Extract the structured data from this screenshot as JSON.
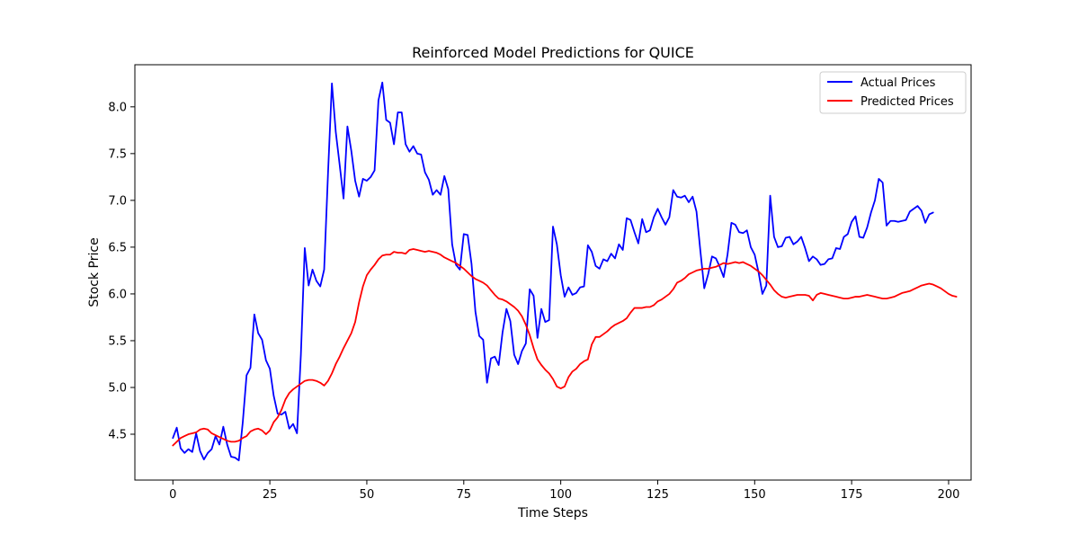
{
  "chart_data": {
    "type": "line",
    "title": "Reinforced Model Predictions for QUICE",
    "xlabel": "Time Steps",
    "ylabel": "Stock Price",
    "xlim": [
      -9.8,
      205.8
    ],
    "ylim": [
      4.01,
      8.45
    ],
    "xticks": [
      0,
      25,
      50,
      75,
      100,
      125,
      150,
      175,
      200
    ],
    "yticks": [
      4.5,
      5.0,
      5.5,
      6.0,
      6.5,
      7.0,
      7.5,
      8.0
    ],
    "grid": false,
    "legend_position": "top-right",
    "series": [
      {
        "name": "Actual Prices",
        "color": "#0000ff",
        "values": [
          4.46,
          4.57,
          4.35,
          4.3,
          4.34,
          4.31,
          4.51,
          4.32,
          4.23,
          4.3,
          4.34,
          4.48,
          4.39,
          4.58,
          4.39,
          4.26,
          4.25,
          4.22,
          4.62,
          5.13,
          5.21,
          5.78,
          5.58,
          5.51,
          5.29,
          5.2,
          4.91,
          4.72,
          4.71,
          4.74,
          4.56,
          4.61,
          4.51,
          5.35,
          6.49,
          6.09,
          6.26,
          6.14,
          6.08,
          6.26,
          7.29,
          8.25,
          7.73,
          7.38,
          7.02,
          7.79,
          7.53,
          7.21,
          7.04,
          7.23,
          7.21,
          7.25,
          7.32,
          8.07,
          8.26,
          7.86,
          7.83,
          7.6,
          7.94,
          7.94,
          7.6,
          7.52,
          7.58,
          7.5,
          7.49,
          7.3,
          7.22,
          7.06,
          7.11,
          7.06,
          7.26,
          7.12,
          6.53,
          6.31,
          6.26,
          6.64,
          6.63,
          6.32,
          5.81,
          5.55,
          5.51,
          5.05,
          5.31,
          5.33,
          5.24,
          5.59,
          5.84,
          5.71,
          5.35,
          5.25,
          5.39,
          5.47,
          6.05,
          5.98,
          5.53,
          5.84,
          5.7,
          5.72,
          6.72,
          6.53,
          6.2,
          5.97,
          6.07,
          5.99,
          6.01,
          6.07,
          6.08,
          6.52,
          6.45,
          6.3,
          6.27,
          6.37,
          6.35,
          6.43,
          6.38,
          6.53,
          6.47,
          6.81,
          6.79,
          6.66,
          6.54,
          6.8,
          6.66,
          6.68,
          6.82,
          6.91,
          6.82,
          6.74,
          6.82,
          7.11,
          7.04,
          7.03,
          7.05,
          6.98,
          7.04,
          6.88,
          6.46,
          6.06,
          6.21,
          6.4,
          6.38,
          6.29,
          6.18,
          6.42,
          6.76,
          6.74,
          6.66,
          6.65,
          6.68,
          6.5,
          6.42,
          6.23,
          6.0,
          6.09,
          7.05,
          6.61,
          6.5,
          6.51,
          6.6,
          6.61,
          6.53,
          6.56,
          6.61,
          6.49,
          6.35,
          6.4,
          6.37,
          6.31,
          6.32,
          6.37,
          6.38,
          6.49,
          6.48,
          6.61,
          6.64,
          6.77,
          6.83,
          6.61,
          6.6,
          6.71,
          6.87,
          7.0,
          7.23,
          7.19,
          6.73,
          6.78,
          6.78,
          6.77,
          6.78,
          6.79,
          6.88,
          6.91,
          6.94,
          6.89,
          6.76,
          6.85,
          6.87
        ]
      },
      {
        "name": "Predicted Prices",
        "color": "#ff0000",
        "values": [
          4.38,
          4.42,
          4.46,
          4.48,
          4.5,
          4.51,
          4.52,
          4.55,
          4.56,
          4.55,
          4.51,
          4.49,
          4.47,
          4.45,
          4.43,
          4.42,
          4.42,
          4.43,
          4.46,
          4.48,
          4.53,
          4.55,
          4.56,
          4.54,
          4.5,
          4.54,
          4.63,
          4.68,
          4.76,
          4.87,
          4.94,
          4.98,
          5.01,
          5.04,
          5.07,
          5.08,
          5.08,
          5.07,
          5.05,
          5.02,
          5.07,
          5.15,
          5.25,
          5.33,
          5.42,
          5.5,
          5.58,
          5.7,
          5.91,
          6.08,
          6.2,
          6.26,
          6.31,
          6.37,
          6.41,
          6.42,
          6.42,
          6.45,
          6.44,
          6.44,
          6.43,
          6.47,
          6.48,
          6.47,
          6.46,
          6.45,
          6.46,
          6.45,
          6.44,
          6.42,
          6.39,
          6.37,
          6.35,
          6.33,
          6.3,
          6.27,
          6.23,
          6.19,
          6.16,
          6.14,
          6.12,
          6.09,
          6.04,
          5.99,
          5.95,
          5.94,
          5.92,
          5.89,
          5.86,
          5.82,
          5.76,
          5.67,
          5.56,
          5.42,
          5.3,
          5.24,
          5.19,
          5.15,
          5.09,
          5.01,
          4.99,
          5.01,
          5.11,
          5.17,
          5.2,
          5.25,
          5.28,
          5.3,
          5.46,
          5.54,
          5.54,
          5.57,
          5.6,
          5.64,
          5.67,
          5.69,
          5.71,
          5.74,
          5.8,
          5.85,
          5.85,
          5.85,
          5.86,
          5.86,
          5.88,
          5.92,
          5.94,
          5.97,
          6.0,
          6.05,
          6.12,
          6.14,
          6.17,
          6.21,
          6.23,
          6.25,
          6.26,
          6.27,
          6.27,
          6.28,
          6.29,
          6.31,
          6.33,
          6.32,
          6.33,
          6.34,
          6.33,
          6.34,
          6.32,
          6.3,
          6.27,
          6.24,
          6.2,
          6.15,
          6.1,
          6.04,
          6.0,
          5.97,
          5.96,
          5.97,
          5.98,
          5.99,
          5.99,
          5.99,
          5.98,
          5.93,
          5.99,
          6.01,
          6.0,
          5.99,
          5.98,
          5.97,
          5.96,
          5.95,
          5.95,
          5.96,
          5.97,
          5.97,
          5.98,
          5.99,
          5.98,
          5.97,
          5.96,
          5.95,
          5.95,
          5.96,
          5.97,
          5.99,
          6.01,
          6.02,
          6.03,
          6.05,
          6.07,
          6.09,
          6.1,
          6.11,
          6.1,
          6.08,
          6.06,
          6.03,
          6.0,
          5.98,
          5.97
        ]
      }
    ]
  }
}
